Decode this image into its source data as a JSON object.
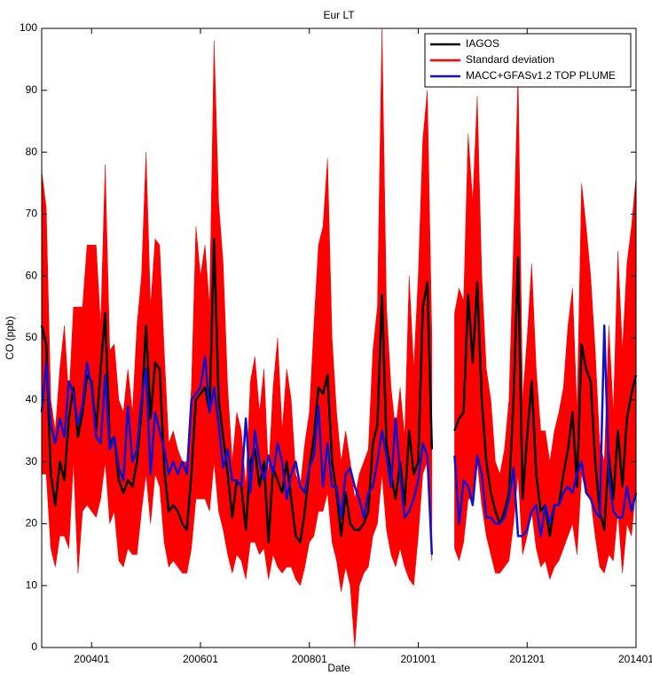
{
  "chart_data": {
    "type": "line",
    "title": "Eur LT",
    "xlabel": "Date",
    "ylabel": "CO (ppb)",
    "categories": [
      null,
      null,
      null,
      null,
      null,
      null,
      null,
      null,
      null,
      null,
      null,
      "200401",
      null,
      null,
      null,
      null,
      null,
      null,
      null,
      null,
      null,
      null,
      null,
      null,
      null,
      null,
      null,
      null,
      null,
      null,
      null,
      null,
      null,
      null,
      null,
      "200601",
      null,
      null,
      null,
      null,
      null,
      null,
      null,
      null,
      null,
      null,
      null,
      null,
      null,
      null,
      null,
      null,
      null,
      null,
      null,
      null,
      null,
      null,
      null,
      "200801",
      null,
      null,
      null,
      null,
      null,
      null,
      null,
      null,
      null,
      null,
      null,
      null,
      null,
      null,
      null,
      null,
      null,
      null,
      null,
      null,
      null,
      null,
      null,
      "201001",
      null,
      null,
      null,
      null,
      null,
      null,
      null,
      null,
      null,
      null,
      null,
      null,
      null,
      null,
      null,
      null,
      null,
      null,
      null,
      null,
      null,
      null,
      null,
      "201201",
      null,
      null,
      null,
      null,
      null,
      null,
      null,
      null,
      null,
      null,
      null,
      null,
      null,
      null,
      null,
      null,
      null,
      null,
      null,
      null,
      null,
      null,
      null,
      "201401"
    ],
    "ylim": [
      0,
      100
    ],
    "yticks": [
      0,
      10,
      20,
      30,
      40,
      50,
      60,
      70,
      80,
      90,
      100
    ],
    "legend": "upper right",
    "series": [
      {
        "name": "IAGOS",
        "color": "#000000",
        "values": [
          52,
          49,
          28,
          23,
          30,
          27,
          37,
          42,
          34,
          38,
          44,
          43,
          35,
          45,
          54,
          33,
          34,
          27,
          25,
          27,
          26,
          30,
          38,
          52,
          37,
          46,
          45,
          29,
          22,
          23,
          22,
          20,
          19,
          28,
          40,
          41,
          42,
          38,
          66,
          40,
          34,
          28,
          21,
          27,
          26,
          19,
          30,
          32,
          26,
          30,
          17,
          29,
          27,
          25,
          30,
          24,
          18,
          17,
          22,
          29,
          34,
          42,
          41,
          44,
          30,
          25,
          18,
          25,
          20,
          19,
          19,
          20,
          22,
          33,
          36,
          57,
          33,
          28,
          24,
          30,
          23,
          35,
          28,
          30,
          55,
          59,
          32,
          null,
          null,
          null,
          null,
          35,
          37,
          38,
          57,
          46,
          59,
          40,
          30,
          25,
          22,
          20,
          22,
          25,
          40,
          63,
          24,
          34,
          43,
          28,
          22,
          23,
          18,
          23,
          23,
          28,
          32,
          38,
          26,
          49,
          45,
          43,
          30,
          22,
          19,
          31,
          24,
          35,
          26,
          37,
          41,
          44
        ]
      },
      {
        "name": "Standard deviation",
        "color": "#ff0000",
        "upper": [
          77,
          71,
          40,
          35,
          45,
          52,
          40,
          55,
          55,
          55,
          65,
          65,
          65,
          52,
          78,
          48,
          49,
          40,
          38,
          45,
          38,
          52,
          60,
          80,
          55,
          66,
          65,
          48,
          33,
          35,
          32,
          30,
          30,
          42,
          68,
          60,
          65,
          55,
          98,
          72,
          62,
          42,
          30,
          38,
          35,
          26,
          43,
          47,
          38,
          45,
          28,
          42,
          50,
          35,
          45,
          40,
          28,
          26,
          33,
          38,
          52,
          65,
          68,
          79,
          50,
          38,
          30,
          35,
          30,
          24,
          28,
          30,
          32,
          48,
          55,
          100,
          55,
          42,
          35,
          42,
          34,
          60,
          45,
          60,
          82,
          90,
          50,
          null,
          null,
          null,
          null,
          54,
          58,
          56,
          83,
          72,
          89,
          60,
          45,
          40,
          30,
          28,
          32,
          40,
          65,
          93,
          40,
          50,
          62,
          45,
          35,
          35,
          30,
          35,
          38,
          42,
          52,
          58,
          38,
          75,
          68,
          60,
          48,
          33,
          30,
          52,
          38,
          64,
          48,
          62,
          68,
          76
        ],
        "lower": [
          28,
          28,
          16,
          13,
          18,
          18,
          16,
          30,
          12,
          22,
          23,
          22,
          21,
          24,
          30,
          20,
          22,
          14,
          13,
          16,
          15,
          15,
          22,
          28,
          20,
          28,
          26,
          17,
          13,
          14,
          13,
          12,
          12,
          16,
          24,
          24,
          24,
          22,
          30,
          22,
          19,
          15,
          12,
          15,
          14,
          11,
          17,
          17,
          15,
          16,
          11,
          15,
          13,
          12,
          13,
          13,
          11,
          10,
          13,
          17,
          18,
          22,
          22,
          25,
          17,
          14,
          9,
          13,
          10,
          0,
          10,
          12,
          13,
          18,
          20,
          28,
          19,
          15,
          13,
          16,
          13,
          11,
          10,
          18,
          28,
          30,
          14,
          null,
          null,
          null,
          null,
          16,
          14,
          17,
          24,
          24,
          30,
          23,
          18,
          15,
          12,
          12,
          13,
          14,
          20,
          28,
          15,
          18,
          22,
          16,
          13,
          14,
          11,
          13,
          14,
          16,
          18,
          20,
          15,
          28,
          25,
          24,
          18,
          13,
          12,
          15,
          14,
          22,
          12,
          20,
          18,
          26
        ]
      },
      {
        "name": "MACC+GFASv1.2 TOP PLUME",
        "color": "#1010d0",
        "values": [
          38,
          46,
          36,
          33,
          37,
          34,
          43,
          41,
          36,
          39,
          46,
          42,
          34,
          33,
          44,
          32,
          34,
          29,
          27,
          39,
          30,
          32,
          40,
          45,
          28,
          38,
          35,
          32,
          28,
          30,
          28,
          30,
          28,
          40,
          41,
          42,
          47,
          38,
          42,
          36,
          29,
          32,
          27,
          27,
          26,
          37,
          25,
          35,
          30,
          27,
          31,
          28,
          33,
          30,
          24,
          28,
          30,
          26,
          25,
          29,
          31,
          39,
          26,
          33,
          26,
          26,
          21,
          28,
          29,
          26,
          24,
          21,
          25,
          26,
          30,
          35,
          31,
          26,
          37,
          28,
          21,
          22,
          24,
          27,
          33,
          31,
          15,
          null,
          null,
          null,
          null,
          31,
          20,
          27,
          26,
          23,
          31,
          28,
          21,
          21,
          20,
          20,
          21,
          24,
          29,
          18,
          18,
          19,
          22,
          23,
          18,
          23,
          20,
          23,
          23,
          25,
          26,
          25,
          28,
          30,
          25,
          24,
          22,
          21,
          52,
          28,
          22,
          21,
          21,
          26,
          22,
          25
        ]
      }
    ]
  }
}
